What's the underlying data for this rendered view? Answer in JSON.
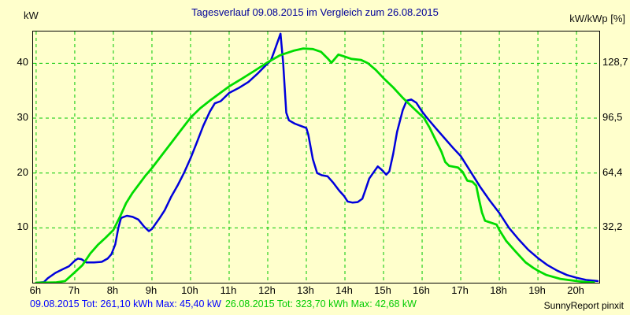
{
  "title": "Tagesverlauf 09.08.2015 im Vergleich zum 26.08.2015",
  "axes": {
    "left_unit_label": "kW",
    "right_unit_label": "kW/kWp [%]"
  },
  "footer": {
    "series1_summary": "09.08.2015 Tot: 261,10 kWh Max: 45,40 kW",
    "series2_summary": "26.08.2015 Tot: 323,70 kWh Max: 42,68 kW",
    "credit": "SunnyReport pinxit"
  },
  "colors": {
    "background": "#FFFFCC",
    "grid": "#00C800",
    "series1": "#0000DC",
    "series2": "#00DC00",
    "title": "#000099",
    "footer_series1": "#0000FF",
    "footer_series2": "#00CC00"
  },
  "chart_data": {
    "type": "line",
    "x_unit": "hour-of-day",
    "xlim": [
      5.92,
      20.59
    ],
    "ylim": [
      0,
      45.8
    ],
    "grid": "dashed-green",
    "legend_position": "footer-bottom",
    "x_ticks": [
      {
        "value": 6,
        "label": "6h"
      },
      {
        "value": 7,
        "label": "7h"
      },
      {
        "value": 8,
        "label": "8h"
      },
      {
        "value": 9,
        "label": "9h"
      },
      {
        "value": 10,
        "label": "10h"
      },
      {
        "value": 11,
        "label": "11h"
      },
      {
        "value": 12,
        "label": "12h"
      },
      {
        "value": 13,
        "label": "13h"
      },
      {
        "value": 14,
        "label": "14h"
      },
      {
        "value": 15,
        "label": "15h"
      },
      {
        "value": 16,
        "label": "16h"
      },
      {
        "value": 17,
        "label": "17h"
      },
      {
        "value": 18,
        "label": "18h"
      },
      {
        "value": 19,
        "label": "19h"
      },
      {
        "value": 20,
        "label": "20h"
      }
    ],
    "y_ticks": [
      {
        "value": 10,
        "left_label": "10",
        "right_label": "32,2"
      },
      {
        "value": 20,
        "left_label": "20",
        "right_label": "64,4"
      },
      {
        "value": 30,
        "left_label": "30",
        "right_label": "96,5"
      },
      {
        "value": 40,
        "left_label": "40",
        "right_label": "128,7"
      }
    ],
    "series": [
      {
        "name": "09.08.2015",
        "total_kwh": "261,10",
        "max_kw": "45,40",
        "color": "#0000DC",
        "points": [
          [
            6.0,
            0
          ],
          [
            6.2,
            0.1
          ],
          [
            6.3,
            0.8
          ],
          [
            6.5,
            1.8
          ],
          [
            6.7,
            2.5
          ],
          [
            6.85,
            3.0
          ],
          [
            7.0,
            4.0
          ],
          [
            7.08,
            4.4
          ],
          [
            7.17,
            4.3
          ],
          [
            7.3,
            3.7
          ],
          [
            7.5,
            3.7
          ],
          [
            7.7,
            3.8
          ],
          [
            7.85,
            4.4
          ],
          [
            7.95,
            5.2
          ],
          [
            8.05,
            7.0
          ],
          [
            8.13,
            10.0
          ],
          [
            8.2,
            11.8
          ],
          [
            8.35,
            12.2
          ],
          [
            8.5,
            12.0
          ],
          [
            8.65,
            11.5
          ],
          [
            8.8,
            10.2
          ],
          [
            8.92,
            9.4
          ],
          [
            9.0,
            9.8
          ],
          [
            9.08,
            10.6
          ],
          [
            9.2,
            11.8
          ],
          [
            9.33,
            13.2
          ],
          [
            9.5,
            15.7
          ],
          [
            9.67,
            17.8
          ],
          [
            9.83,
            20.0
          ],
          [
            10.0,
            22.7
          ],
          [
            10.17,
            25.7
          ],
          [
            10.33,
            28.6
          ],
          [
            10.5,
            31.2
          ],
          [
            10.63,
            32.7
          ],
          [
            10.78,
            33.1
          ],
          [
            11.0,
            34.6
          ],
          [
            11.25,
            35.5
          ],
          [
            11.5,
            36.6
          ],
          [
            11.75,
            38.2
          ],
          [
            12.0,
            40.0
          ],
          [
            12.08,
            40.5
          ],
          [
            12.17,
            42.2
          ],
          [
            12.33,
            45.4
          ],
          [
            12.4,
            40.0
          ],
          [
            12.48,
            31.0
          ],
          [
            12.55,
            29.6
          ],
          [
            12.7,
            29.0
          ],
          [
            12.85,
            28.6
          ],
          [
            13.0,
            28.2
          ],
          [
            13.05,
            27.0
          ],
          [
            13.17,
            22.5
          ],
          [
            13.28,
            20.0
          ],
          [
            13.4,
            19.6
          ],
          [
            13.55,
            19.4
          ],
          [
            13.7,
            18.2
          ],
          [
            13.85,
            16.8
          ],
          [
            13.98,
            15.8
          ],
          [
            14.07,
            14.8
          ],
          [
            14.2,
            14.6
          ],
          [
            14.33,
            14.7
          ],
          [
            14.45,
            15.3
          ],
          [
            14.53,
            16.9
          ],
          [
            14.63,
            19.0
          ],
          [
            14.73,
            20.0
          ],
          [
            14.85,
            21.2
          ],
          [
            14.95,
            20.6
          ],
          [
            15.07,
            19.7
          ],
          [
            15.15,
            20.3
          ],
          [
            15.25,
            23.5
          ],
          [
            15.35,
            27.5
          ],
          [
            15.5,
            31.5
          ],
          [
            15.6,
            33.2
          ],
          [
            15.72,
            33.4
          ],
          [
            15.85,
            32.8
          ],
          [
            16.0,
            31.2
          ],
          [
            16.1,
            30.3
          ],
          [
            16.35,
            28.2
          ],
          [
            16.6,
            26.2
          ],
          [
            16.8,
            24.6
          ],
          [
            17.0,
            23.1
          ],
          [
            17.25,
            20.3
          ],
          [
            17.5,
            17.5
          ],
          [
            17.75,
            15.0
          ],
          [
            18.0,
            12.7
          ],
          [
            18.25,
            10.0
          ],
          [
            18.5,
            7.9
          ],
          [
            18.75,
            6.0
          ],
          [
            19.0,
            4.5
          ],
          [
            19.25,
            3.2
          ],
          [
            19.5,
            2.2
          ],
          [
            19.75,
            1.4
          ],
          [
            20.0,
            0.9
          ],
          [
            20.25,
            0.5
          ],
          [
            20.55,
            0.3
          ]
        ]
      },
      {
        "name": "26.08.2015",
        "total_kwh": "323,70",
        "max_kw": "42,68",
        "color": "#00DC00",
        "points": [
          [
            6.0,
            0
          ],
          [
            6.5,
            0.05
          ],
          [
            6.75,
            0.3
          ],
          [
            7.0,
            1.9
          ],
          [
            7.2,
            3.2
          ],
          [
            7.4,
            5.3
          ],
          [
            7.6,
            6.9
          ],
          [
            7.8,
            8.2
          ],
          [
            8.0,
            9.6
          ],
          [
            8.17,
            12.0
          ],
          [
            8.33,
            14.5
          ],
          [
            8.5,
            16.4
          ],
          [
            8.67,
            18.0
          ],
          [
            8.83,
            19.5
          ],
          [
            9.0,
            20.9
          ],
          [
            9.25,
            23.2
          ],
          [
            9.5,
            25.5
          ],
          [
            9.75,
            27.8
          ],
          [
            10.0,
            30.1
          ],
          [
            10.25,
            31.8
          ],
          [
            10.5,
            33.2
          ],
          [
            10.75,
            34.5
          ],
          [
            11.0,
            35.8
          ],
          [
            11.33,
            37.2
          ],
          [
            11.67,
            38.7
          ],
          [
            12.0,
            40.2
          ],
          [
            12.33,
            41.5
          ],
          [
            12.67,
            42.3
          ],
          [
            12.92,
            42.7
          ],
          [
            13.17,
            42.6
          ],
          [
            13.38,
            42.1
          ],
          [
            13.55,
            40.9
          ],
          [
            13.65,
            40.1
          ],
          [
            13.83,
            41.6
          ],
          [
            14.0,
            41.2
          ],
          [
            14.17,
            40.8
          ],
          [
            14.42,
            40.6
          ],
          [
            14.6,
            40.0
          ],
          [
            14.8,
            38.8
          ],
          [
            15.0,
            37.3
          ],
          [
            15.25,
            35.6
          ],
          [
            15.5,
            33.7
          ],
          [
            15.75,
            32.0
          ],
          [
            16.05,
            30.0
          ],
          [
            16.2,
            28.2
          ],
          [
            16.35,
            26.0
          ],
          [
            16.5,
            23.9
          ],
          [
            16.6,
            22.0
          ],
          [
            16.7,
            21.3
          ],
          [
            16.93,
            21.0
          ],
          [
            17.05,
            20.2
          ],
          [
            17.17,
            18.6
          ],
          [
            17.3,
            18.4
          ],
          [
            17.4,
            17.7
          ],
          [
            17.47,
            15.3
          ],
          [
            17.55,
            12.8
          ],
          [
            17.63,
            11.3
          ],
          [
            17.8,
            10.9
          ],
          [
            17.93,
            10.6
          ],
          [
            18.0,
            9.6
          ],
          [
            18.18,
            7.6
          ],
          [
            18.42,
            5.7
          ],
          [
            18.68,
            3.7
          ],
          [
            18.88,
            2.7
          ],
          [
            19.0,
            2.2
          ],
          [
            19.22,
            1.4
          ],
          [
            19.58,
            0.7
          ],
          [
            20.0,
            0.3
          ],
          [
            20.25,
            0.1
          ],
          [
            20.45,
            0.05
          ]
        ]
      }
    ]
  }
}
